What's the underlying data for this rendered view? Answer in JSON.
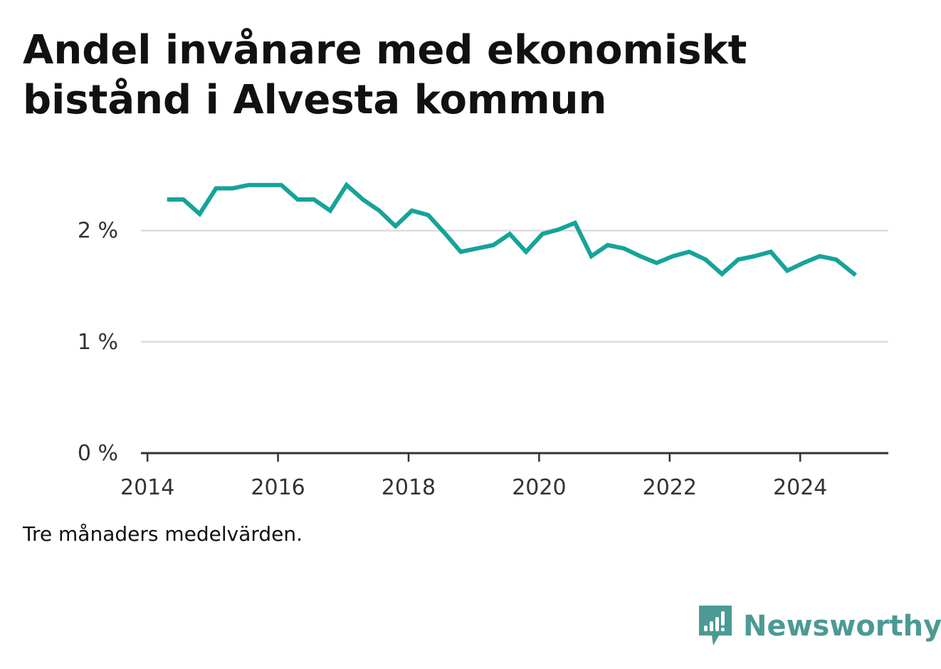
{
  "title": "Andel invånare med ekonomiskt bistånd i Alvesta kommun",
  "note": "Tre månaders medelvärden.",
  "brand": {
    "name": "Newsworthy",
    "color": "#4c9a94",
    "icon": "newsworthy-logo-icon"
  },
  "colors": {
    "line": "#16a39a",
    "grid": "#dddddd",
    "axis": "#333333"
  },
  "chart_data": {
    "type": "line",
    "title": "Andel invånare med ekonomiskt bistånd i Alvesta kommun",
    "xlabel": "",
    "ylabel": "",
    "xlim": [
      2013.9,
      2025.35
    ],
    "ylim": [
      0,
      2.6
    ],
    "grid": true,
    "x_ticks": [
      2014,
      2016,
      2018,
      2020,
      2022,
      2024
    ],
    "x_tick_labels": [
      "2014",
      "2016",
      "2018",
      "2020",
      "2022",
      "2024"
    ],
    "y_ticks": [
      0,
      1,
      2
    ],
    "y_tick_labels": [
      "0 %",
      "1 %",
      "2 %"
    ],
    "series": [
      {
        "x": [
          2014.3,
          2014.55,
          2014.8,
          2015.05,
          2015.3,
          2015.55,
          2015.8,
          2016.05,
          2016.3,
          2016.55,
          2016.8,
          2017.05,
          2017.3,
          2017.55,
          2017.8,
          2018.05,
          2018.3,
          2018.55,
          2018.8,
          2019.05,
          2019.3,
          2019.55,
          2019.8,
          2020.05,
          2020.3,
          2020.55,
          2020.8,
          2021.05,
          2021.3,
          2021.55,
          2021.8,
          2022.05,
          2022.3,
          2022.55,
          2022.8,
          2023.05,
          2023.3,
          2023.55,
          2023.8,
          2024.05,
          2024.3,
          2024.55,
          2024.85
        ],
        "values": [
          2.28,
          2.28,
          2.15,
          2.38,
          2.38,
          2.41,
          2.41,
          2.41,
          2.28,
          2.28,
          2.18,
          2.41,
          2.28,
          2.18,
          2.04,
          2.18,
          2.14,
          1.98,
          1.81,
          1.84,
          1.87,
          1.97,
          1.81,
          1.97,
          2.01,
          2.07,
          1.77,
          1.87,
          1.84,
          1.77,
          1.71,
          1.77,
          1.81,
          1.74,
          1.61,
          1.74,
          1.77,
          1.81,
          1.64,
          1.71,
          1.77,
          1.74,
          1.6
        ]
      }
    ]
  }
}
